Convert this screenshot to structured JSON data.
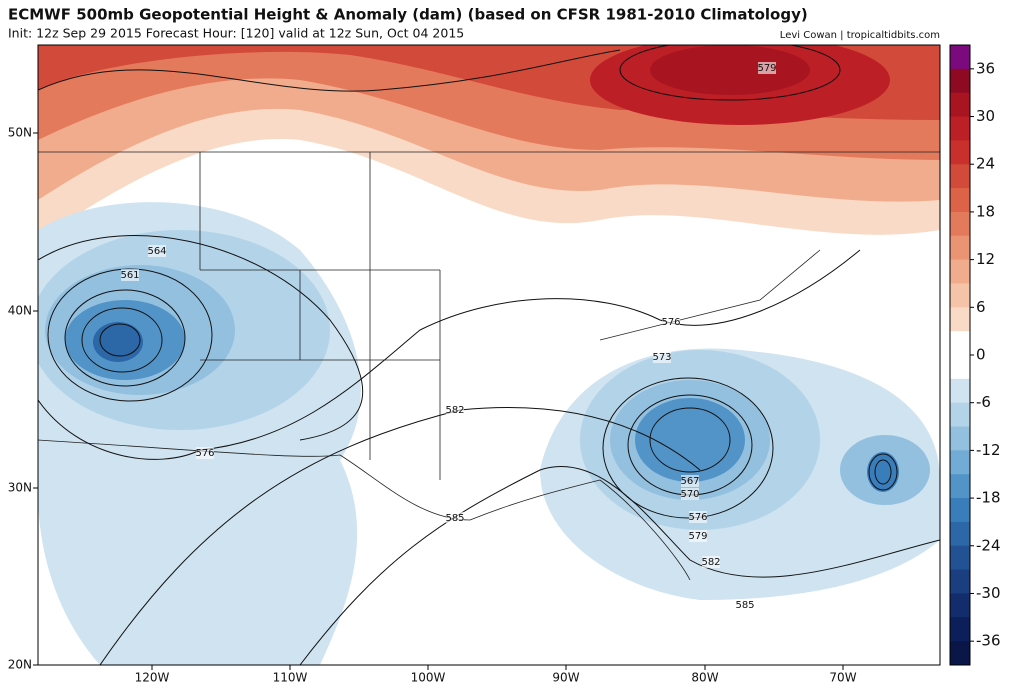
{
  "header": {
    "title": "ECMWF 500mb Geopotential Height & Anomaly (dam) (based on CFSR 1981-2010 Climatology)",
    "subtitle": "Init: 12z Sep 29 2015   Forecast Hour: [120]   valid at 12z Sun, Oct 04 2015",
    "credit": "Levi Cowan | tropicaltidbits.com"
  },
  "map": {
    "lat_labels": [
      "50N",
      "40N",
      "30N",
      "20N"
    ],
    "lon_labels": [
      "120W",
      "110W",
      "100W",
      "90W",
      "80W",
      "70W"
    ],
    "contour_labels": [
      "564",
      "561",
      "576",
      "582",
      "585",
      "576",
      "573",
      "567",
      "570",
      "576",
      "579",
      "582",
      "585",
      "579"
    ]
  },
  "colorbar": {
    "ticks": [
      36,
      30,
      24,
      18,
      12,
      6,
      0,
      -6,
      -12,
      -18,
      -24,
      -30,
      -36
    ],
    "colors": [
      "#7b0a7e",
      "#8e0a22",
      "#a8141f",
      "#bd1f26",
      "#c9302c",
      "#d24a3a",
      "#dc6248",
      "#e47a5c",
      "#eb9473",
      "#f0ac8c",
      "#f5c4a8",
      "#f9dac6",
      "#ffffff",
      "#ffffff",
      "#cfe3f0",
      "#b3d3e8",
      "#93c0df",
      "#72abd5",
      "#5294c8",
      "#3a7dbb",
      "#2c67a8",
      "#225294",
      "#1a3e80",
      "#132d6c",
      "#0d1f5a",
      "#0a1548"
    ]
  }
}
